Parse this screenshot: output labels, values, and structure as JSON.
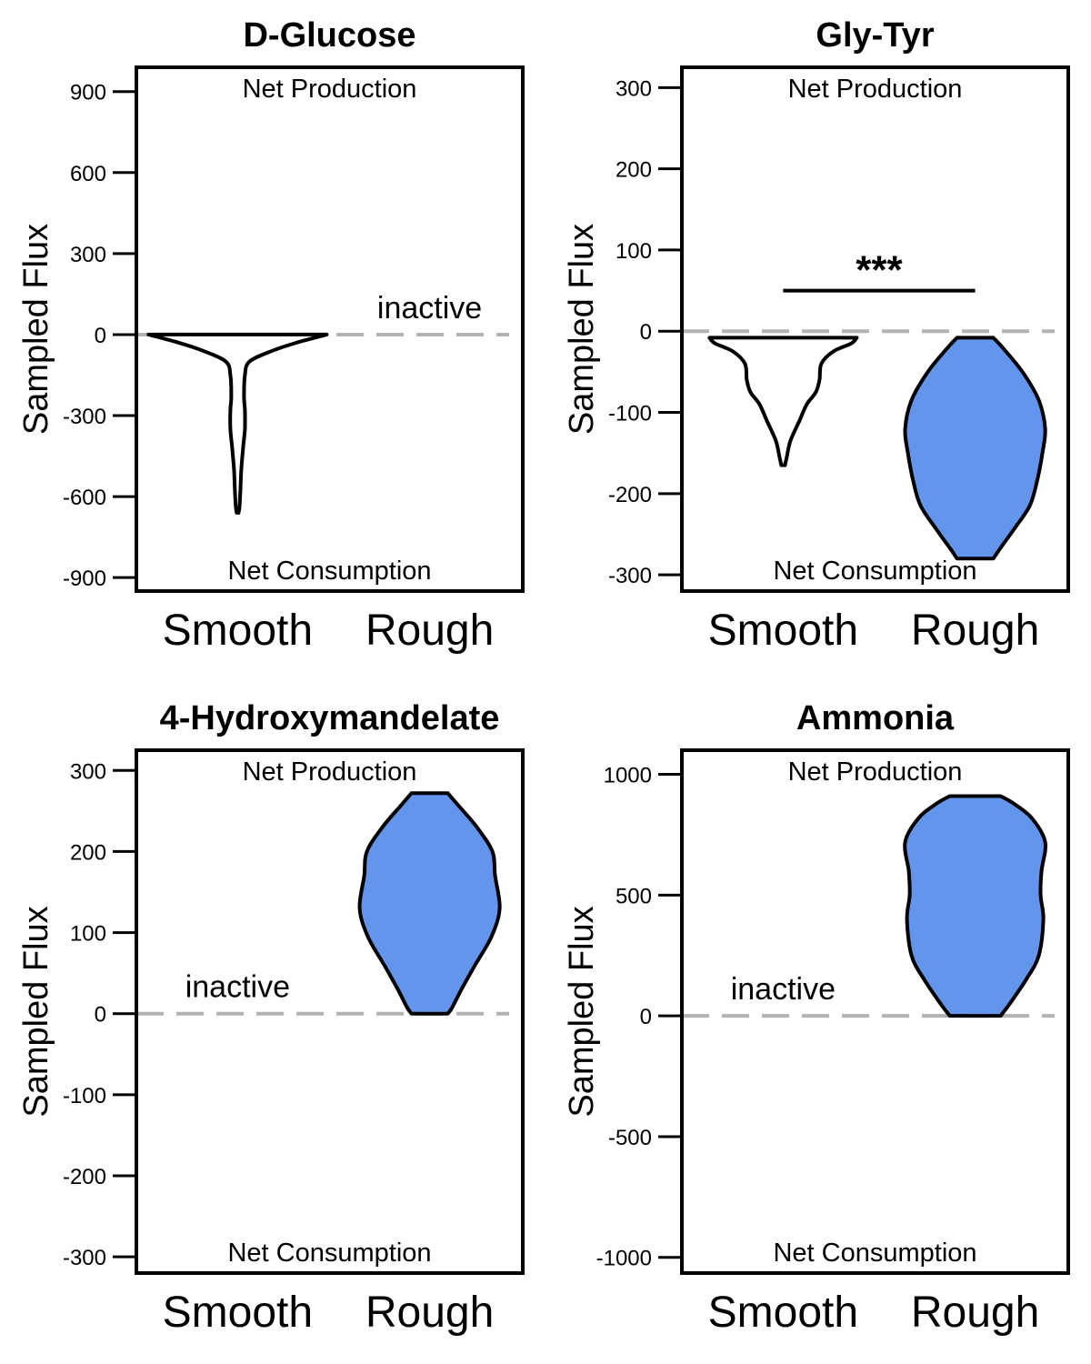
{
  "chart_data": [
    {
      "type": "violin",
      "title": "D-Glucose",
      "ylabel": "Sampled Flux",
      "ylim": [
        -950,
        990
      ],
      "yticks": [
        900,
        600,
        300,
        0,
        -300,
        -600,
        -900
      ],
      "ytick_labels": [
        "900",
        "600",
        "300",
        "0",
        "-300",
        "-600",
        "-900"
      ],
      "categories": [
        "Smooth",
        "Rough"
      ],
      "top_label": "Net Production",
      "bottom_label": "Net Consumption",
      "inactive_label": "inactive",
      "inactive_category": "Rough",
      "reference_line": 0,
      "series": [
        {
          "category": "Smooth",
          "fill": "#ffffff",
          "profile": [
            [
              0,
              0.98
            ],
            [
              -30,
              0.65
            ],
            [
              -60,
              0.38
            ],
            [
              -100,
              0.13
            ],
            [
              -150,
              0.08
            ],
            [
              -230,
              0.07
            ],
            [
              -280,
              0.08
            ],
            [
              -350,
              0.08
            ],
            [
              -420,
              0.06
            ],
            [
              -500,
              0.04
            ],
            [
              -580,
              0.03
            ],
            [
              -640,
              0.02
            ],
            [
              -660,
              0.01
            ]
          ]
        }
      ],
      "significance": null
    },
    {
      "type": "violin",
      "title": "Gly-Tyr",
      "ylabel": "Sampled Flux",
      "ylim": [
        -320,
        325
      ],
      "yticks": [
        300,
        200,
        100,
        0,
        -100,
        -200,
        -300
      ],
      "ytick_labels": [
        "300",
        "200",
        "100",
        "0",
        "-100",
        "-200",
        "-300"
      ],
      "categories": [
        "Smooth",
        "Rough"
      ],
      "top_label": "Net Production",
      "bottom_label": "Net Consumption",
      "inactive_label": null,
      "inactive_category": null,
      "reference_line": 0,
      "series": [
        {
          "category": "Smooth",
          "fill": "#ffffff",
          "profile": [
            [
              -8,
              0.81
            ],
            [
              -15,
              0.75
            ],
            [
              -25,
              0.55
            ],
            [
              -40,
              0.42
            ],
            [
              -60,
              0.4
            ],
            [
              -75,
              0.36
            ],
            [
              -90,
              0.26
            ],
            [
              -110,
              0.18
            ],
            [
              -135,
              0.08
            ],
            [
              -155,
              0.04
            ],
            [
              -165,
              0.02
            ]
          ]
        },
        {
          "category": "Rough",
          "fill": "#6495ed",
          "profile": [
            [
              -8,
              0.2
            ],
            [
              -20,
              0.3
            ],
            [
              -50,
              0.52
            ],
            [
              -85,
              0.7
            ],
            [
              -120,
              0.77
            ],
            [
              -150,
              0.74
            ],
            [
              -185,
              0.68
            ],
            [
              -215,
              0.6
            ],
            [
              -245,
              0.42
            ],
            [
              -270,
              0.26
            ],
            [
              -280,
              0.2
            ]
          ]
        }
      ],
      "significance": {
        "label": "***",
        "y": 50
      }
    },
    {
      "type": "violin",
      "title": "4-Hydroxymandelate",
      "ylabel": "Sampled Flux",
      "ylim": [
        -320,
        325
      ],
      "yticks": [
        300,
        200,
        100,
        0,
        -100,
        -200,
        -300
      ],
      "ytick_labels": [
        "300",
        "200",
        "100",
        "0",
        "-100",
        "-200",
        "-300"
      ],
      "categories": [
        "Smooth",
        "Rough"
      ],
      "top_label": "Net Production",
      "bottom_label": "Net Consumption",
      "inactive_label": "inactive",
      "inactive_category": "Smooth",
      "reference_line": 0,
      "series": [
        {
          "category": "Rough",
          "fill": "#6495ed",
          "profile": [
            [
              272,
              0.2
            ],
            [
              255,
              0.33
            ],
            [
              230,
              0.52
            ],
            [
              200,
              0.69
            ],
            [
              170,
              0.72
            ],
            [
              130,
              0.77
            ],
            [
              95,
              0.68
            ],
            [
              60,
              0.5
            ],
            [
              30,
              0.35
            ],
            [
              8,
              0.25
            ],
            [
              0,
              0.2
            ]
          ]
        }
      ],
      "significance": null
    },
    {
      "type": "violin",
      "title": "Ammonia",
      "ylabel": "Sampled Flux",
      "ylim": [
        -1065,
        1100
      ],
      "yticks": [
        1000,
        500,
        0,
        -500,
        -1000
      ],
      "ytick_labels": [
        "1000",
        "500",
        "0",
        "-500",
        "-1000"
      ],
      "categories": [
        "Smooth",
        "Rough"
      ],
      "top_label": "Net Production",
      "bottom_label": "Net Consumption",
      "inactive_label": "inactive",
      "inactive_category": "Smooth",
      "reference_line": 0,
      "series": [
        {
          "category": "Rough",
          "fill": "#6495ed",
          "profile": [
            [
              910,
              0.28
            ],
            [
              880,
              0.42
            ],
            [
              820,
              0.62
            ],
            [
              720,
              0.77
            ],
            [
              600,
              0.73
            ],
            [
              500,
              0.72
            ],
            [
              400,
              0.75
            ],
            [
              250,
              0.7
            ],
            [
              150,
              0.56
            ],
            [
              50,
              0.38
            ],
            [
              0,
              0.28
            ]
          ]
        }
      ],
      "significance": null
    }
  ]
}
